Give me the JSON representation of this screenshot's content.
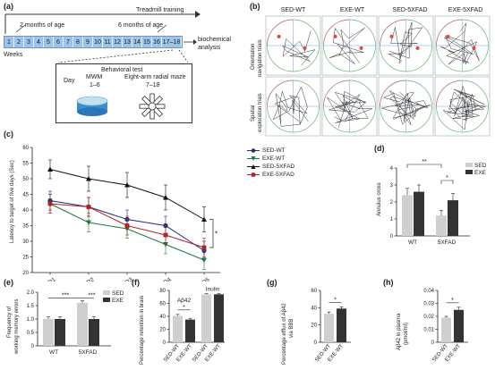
{
  "panel_labels": [
    "(a)",
    "(b)",
    "(c)",
    "(d)",
    "(e)",
    "(f)",
    "(g)",
    "(h)"
  ],
  "panel_a": {
    "header": "Treadmill training",
    "age_start": "2 months of age",
    "age_end": "6 months of age",
    "weeks": [
      "1",
      "2",
      "3",
      "4",
      "5",
      "6",
      "7",
      "8",
      "9",
      "10",
      "11",
      "12",
      "13",
      "14",
      "15",
      "16",
      "17–18"
    ],
    "weeks_label": "Weeks",
    "analysis_label_1": "biochemical",
    "analysis_label_2": "analysis",
    "test_header": "Behavioral test",
    "day_label": "Day",
    "mwm_label": "MWM",
    "mwm_days": "1–6",
    "maze_label": "Eight-arm radial maze",
    "maze_days": "7–18"
  },
  "panel_b": {
    "columns": [
      "SED-WT",
      "EXE-WT",
      "SED-5XFAD",
      "EXE-5XFAD"
    ],
    "row1_label_1": "Orientation",
    "row1_label_2": "navigation trials",
    "row2_label_1": "Spatial",
    "row2_label_2": "exploration trials"
  },
  "colors": {
    "sed": "#cfcfcf",
    "exe": "#333333",
    "blue": "#1f2a8a",
    "green": "#1e7a45",
    "black": "#111111",
    "red": "#b22222"
  },
  "chart_data": [
    {
      "panel": "c",
      "type": "line",
      "ylabel": "Latency to target of five days (Sec)",
      "categories": [
        "D1",
        "D2",
        "D3",
        "D4",
        "D5"
      ],
      "ylim": [
        20,
        60
      ],
      "yticks": [
        "20",
        "25",
        "30",
        "35",
        "40",
        "45",
        "50",
        "55",
        "60"
      ],
      "annotation": "*",
      "series": [
        {
          "name": "SED-WT",
          "marker": "circle",
          "color": "#1f2a8a",
          "values": [
            43,
            41,
            37,
            35,
            27
          ],
          "err": [
            3,
            3,
            3,
            3,
            3
          ]
        },
        {
          "name": "EXE-WT",
          "marker": "triangle-down",
          "color": "#1e7a45",
          "values": [
            42,
            36,
            34,
            29,
            24
          ],
          "err": [
            3,
            3,
            3,
            3,
            3
          ]
        },
        {
          "name": "SED-5XFAD",
          "marker": "triangle-up",
          "color": "#111111",
          "values": [
            53,
            50,
            48,
            44,
            37
          ],
          "err": [
            3,
            4,
            4,
            4,
            4
          ]
        },
        {
          "name": "EXE-5XFAD",
          "marker": "square",
          "color": "#b22222",
          "values": [
            42,
            41,
            35,
            32,
            28
          ],
          "err": [
            3,
            3,
            3,
            3,
            3
          ]
        }
      ]
    },
    {
      "panel": "d",
      "type": "bar",
      "ylabel": "Annulus cross",
      "categories": [
        "WT",
        "5XFAD"
      ],
      "ylim": [
        0,
        4
      ],
      "yticks": [
        "0",
        "1",
        "2",
        "3",
        "4"
      ],
      "legend": [
        "SED",
        "EXE"
      ],
      "series": [
        {
          "name": "SED",
          "values": [
            2.4,
            1.2
          ],
          "err": [
            0.4,
            0.3
          ]
        },
        {
          "name": "EXE",
          "values": [
            2.6,
            2.1
          ],
          "err": [
            0.4,
            0.4
          ]
        }
      ],
      "annotations": [
        "**",
        "*"
      ]
    },
    {
      "panel": "e",
      "type": "bar",
      "ylabel_1": "Frequency of",
      "ylabel_2": "working memory errors",
      "categories": [
        "WT",
        "5XFAD"
      ],
      "ylim": [
        0,
        2.0
      ],
      "yticks": [
        "0",
        "0.5",
        "1.0",
        "1.5",
        "2.0"
      ],
      "legend": [
        "SED",
        "EXE"
      ],
      "series": [
        {
          "name": "SED",
          "values": [
            1.0,
            1.6
          ],
          "err": [
            0.08,
            0.08
          ]
        },
        {
          "name": "EXE",
          "values": [
            1.0,
            1.0
          ],
          "err": [
            0.08,
            0.08
          ]
        }
      ],
      "annotations": [
        "***",
        "***"
      ]
    },
    {
      "panel": "f",
      "type": "bar",
      "ylabel": "Percentage retention in brain",
      "categories": [
        "SED-WT",
        "EXE-WT",
        "SED-WT",
        "EXE-WT"
      ],
      "ylim": [
        0,
        80
      ],
      "yticks": [
        "0",
        "20",
        "40",
        "60",
        "80"
      ],
      "group_labels": [
        "Aβ42",
        "Inulin"
      ],
      "values": [
        41,
        35,
        74,
        74
      ],
      "err": [
        2,
        2,
        1,
        1
      ],
      "bar_colors": [
        "#cfcfcf",
        "#333333",
        "#cfcfcf",
        "#333333"
      ],
      "annotation": "*"
    },
    {
      "panel": "g",
      "type": "bar",
      "ylabel_1": "Percentage efflux of Aβ42",
      "ylabel_2": "via BBB",
      "categories": [
        "SED-WT",
        "EXE-WT"
      ],
      "ylim": [
        0,
        60
      ],
      "yticks": [
        "0",
        "20",
        "40",
        "60"
      ],
      "values": [
        33,
        39
      ],
      "err": [
        2,
        2
      ],
      "bar_colors": [
        "#cfcfcf",
        "#333333"
      ],
      "annotation": "*"
    },
    {
      "panel": "h",
      "type": "bar",
      "ylabel": "Aβ42 in plasma",
      "yunit": "(pmol/ml)",
      "categories": [
        "SED-WT",
        "EXE-WT"
      ],
      "ylim": [
        0,
        0.04
      ],
      "yticks": [
        "0",
        "0.01",
        "0.02",
        "0.03",
        "0.04"
      ],
      "values": [
        0.019,
        0.025
      ],
      "err": [
        0.001,
        0.002
      ],
      "bar_colors": [
        "#cfcfcf",
        "#333333"
      ],
      "annotation": "*"
    }
  ]
}
